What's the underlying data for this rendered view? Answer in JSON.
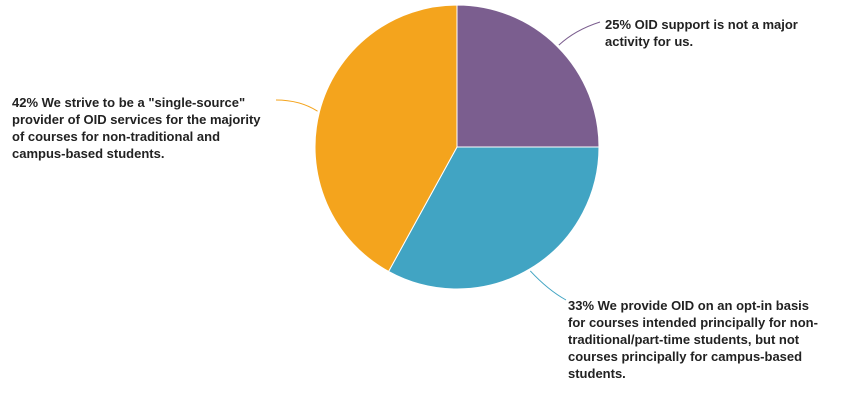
{
  "chart_data": {
    "type": "pie",
    "start_angle": "top",
    "direction": "clockwise",
    "slices": [
      {
        "value": 25,
        "label": "25% OID support is not a major activity for us.",
        "color": "#7b5e8f"
      },
      {
        "value": 33,
        "label": "33% We provide OID on an opt-in basis for courses intended principally for non-traditional/part-time students, but not courses principally for campus-based students.",
        "color": "#41a4c3"
      },
      {
        "value": 42,
        "label": "42% We strive to be a \"single-source\" provider of OID services for the majority of courses for non-traditional and campus-based students.",
        "color": "#f4a41d"
      }
    ]
  }
}
